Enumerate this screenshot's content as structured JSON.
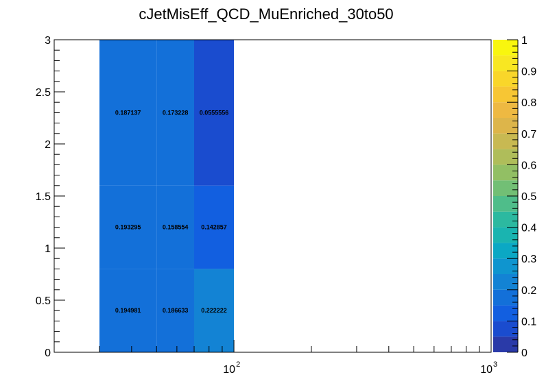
{
  "chart_data": {
    "type": "heatmap",
    "title": "cJetMisEff_QCD_MuEnriched_30to50",
    "xlabel": "",
    "ylabel": "",
    "x_scale": "log",
    "xlim": [
      20,
      1000
    ],
    "ylim": [
      0,
      3
    ],
    "x_bin_edges": [
      30,
      50,
      70,
      100
    ],
    "y_bin_edges": [
      0,
      0.8,
      1.6,
      3.0
    ],
    "z_range": [
      0,
      1
    ],
    "cells": [
      {
        "row": 0,
        "col": 0,
        "value": 0.194981,
        "label": "0.194981"
      },
      {
        "row": 0,
        "col": 1,
        "value": 0.186633,
        "label": "0.186633"
      },
      {
        "row": 0,
        "col": 2,
        "value": 0.222222,
        "label": "0.222222"
      },
      {
        "row": 1,
        "col": 0,
        "value": 0.193295,
        "label": "0.193295"
      },
      {
        "row": 1,
        "col": 1,
        "value": 0.158554,
        "label": "0.158554"
      },
      {
        "row": 1,
        "col": 2,
        "value": 0.142857,
        "label": "0.142857"
      },
      {
        "row": 2,
        "col": 0,
        "value": 0.187137,
        "label": "0.187137"
      },
      {
        "row": 2,
        "col": 1,
        "value": 0.173228,
        "label": "0.173228"
      },
      {
        "row": 2,
        "col": 2,
        "value": 0.0555556,
        "label": "0.0555556"
      }
    ],
    "y_ticks": [
      {
        "value": 0,
        "label": "0"
      },
      {
        "value": 0.5,
        "label": "0.5"
      },
      {
        "value": 1,
        "label": "1"
      },
      {
        "value": 1.5,
        "label": "1.5"
      },
      {
        "value": 2,
        "label": "2"
      },
      {
        "value": 2.5,
        "label": "2.5"
      },
      {
        "value": 3,
        "label": "3"
      }
    ],
    "x_ticks": [
      {
        "value": 100,
        "base": "10",
        "exp": "2"
      },
      {
        "value": 1000,
        "base": "10",
        "exp": "3"
      }
    ],
    "colorbar": {
      "ticks": [
        {
          "value": 0,
          "label": "0"
        },
        {
          "value": 0.1,
          "label": "0.1"
        },
        {
          "value": 0.2,
          "label": "0.2"
        },
        {
          "value": 0.3,
          "label": "0.3"
        },
        {
          "value": 0.4,
          "label": "0.4"
        },
        {
          "value": 0.5,
          "label": "0.5"
        },
        {
          "value": 0.6,
          "label": "0.6"
        },
        {
          "value": 0.7,
          "label": "0.7"
        },
        {
          "value": 0.8,
          "label": "0.8"
        },
        {
          "value": 0.9,
          "label": "0.9"
        },
        {
          "value": 1,
          "label": "1"
        }
      ],
      "colors": [
        "#2a3aa8",
        "#1a4ccf",
        "#125fe0",
        "#1370d9",
        "#1383d4",
        "#0f95cf",
        "#0ba8c4",
        "#1ab4b0",
        "#2cb9a0",
        "#4fbd8a",
        "#72bf75",
        "#92bf64",
        "#afbd5a",
        "#c8b952",
        "#ddb54a",
        "#eeb942",
        "#f7c634",
        "#f9d62a",
        "#f8e722",
        "#f9f60e"
      ],
      "steps": 20
    }
  }
}
